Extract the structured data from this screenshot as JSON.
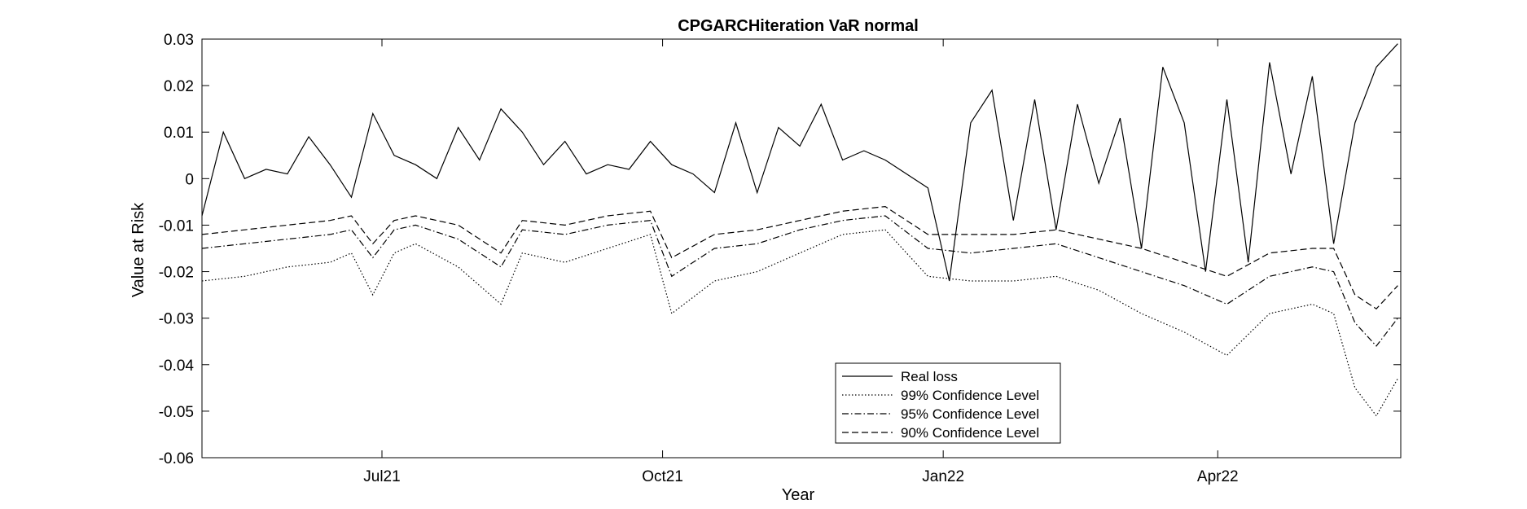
{
  "chart_data": {
    "type": "line",
    "title": "CPGARCHiteration VaR normal",
    "xlabel": "Year",
    "ylabel": "Value at Risk",
    "ylim": [
      -0.06,
      0.03
    ],
    "xlim": [
      "2021-05-03",
      "2022-05-31"
    ],
    "yticks": [
      -0.06,
      -0.05,
      -0.04,
      -0.03,
      -0.02,
      -0.01,
      0,
      0.01,
      0.02,
      0.03
    ],
    "ytick_labels": [
      "-0.06",
      "-0.05",
      "-0.04",
      "-0.03",
      "-0.02",
      "-0.01",
      "0",
      "0.01",
      "0.02",
      "0.03"
    ],
    "xticks": [
      "2021-07-01",
      "2021-10-01",
      "2022-01-01",
      "2022-04-01"
    ],
    "xtick_labels": [
      "Jul21",
      "Oct21",
      "Jan22",
      "Apr22"
    ],
    "grid": false,
    "legend_position": "bottom-center",
    "series": [
      {
        "name": "Real loss",
        "style": "solid",
        "color": "#000000",
        "x": [
          "2021-05-03",
          "2021-05-10",
          "2021-05-17",
          "2021-05-24",
          "2021-05-31",
          "2021-06-07",
          "2021-06-14",
          "2021-06-21",
          "2021-06-28",
          "2021-07-05",
          "2021-07-12",
          "2021-07-19",
          "2021-07-26",
          "2021-08-02",
          "2021-08-09",
          "2021-08-16",
          "2021-08-23",
          "2021-08-30",
          "2021-09-06",
          "2021-09-13",
          "2021-09-20",
          "2021-09-27",
          "2021-10-04",
          "2021-10-11",
          "2021-10-18",
          "2021-10-25",
          "2021-11-01",
          "2021-11-08",
          "2021-11-15",
          "2021-11-22",
          "2021-11-29",
          "2021-12-06",
          "2021-12-13",
          "2021-12-20",
          "2021-12-27",
          "2022-01-03",
          "2022-01-10",
          "2022-01-17",
          "2022-01-24",
          "2022-01-31",
          "2022-02-07",
          "2022-02-14",
          "2022-02-21",
          "2022-02-28",
          "2022-03-07",
          "2022-03-14",
          "2022-03-21",
          "2022-03-28",
          "2022-04-04",
          "2022-04-11",
          "2022-04-18",
          "2022-04-25",
          "2022-05-02",
          "2022-05-09",
          "2022-05-16",
          "2022-05-23",
          "2022-05-30"
        ],
        "values": [
          -0.008,
          0.01,
          0.0,
          0.002,
          0.001,
          0.009,
          0.003,
          -0.004,
          0.014,
          0.005,
          0.003,
          0.0,
          0.011,
          0.004,
          0.015,
          0.01,
          0.003,
          0.008,
          0.001,
          0.003,
          0.002,
          0.008,
          0.003,
          0.001,
          -0.003,
          0.012,
          -0.003,
          0.011,
          0.007,
          0.016,
          0.004,
          0.006,
          0.004,
          0.001,
          -0.002,
          -0.022,
          0.012,
          0.019,
          -0.009,
          0.017,
          -0.011,
          0.016,
          -0.001,
          0.013,
          -0.015,
          0.024,
          0.012,
          -0.02,
          0.017,
          -0.018,
          0.025,
          0.001,
          0.022,
          -0.014,
          0.012,
          0.024,
          0.029
        ]
      },
      {
        "name": "99% Confidence Level",
        "style": "dotted",
        "color": "#000000",
        "x": [
          "2021-05-03",
          "2021-05-17",
          "2021-05-31",
          "2021-06-14",
          "2021-06-21",
          "2021-06-28",
          "2021-07-05",
          "2021-07-12",
          "2021-07-26",
          "2021-08-09",
          "2021-08-16",
          "2021-08-30",
          "2021-09-13",
          "2021-09-27",
          "2021-10-04",
          "2021-10-18",
          "2021-11-01",
          "2021-11-15",
          "2021-11-29",
          "2021-12-13",
          "2021-12-27",
          "2022-01-10",
          "2022-01-24",
          "2022-02-07",
          "2022-02-21",
          "2022-03-07",
          "2022-03-21",
          "2022-04-04",
          "2022-04-18",
          "2022-05-02",
          "2022-05-09",
          "2022-05-16",
          "2022-05-23",
          "2022-05-30"
        ],
        "values": [
          -0.022,
          -0.021,
          -0.019,
          -0.018,
          -0.016,
          -0.025,
          -0.016,
          -0.014,
          -0.019,
          -0.027,
          -0.016,
          -0.018,
          -0.015,
          -0.012,
          -0.029,
          -0.022,
          -0.02,
          -0.016,
          -0.012,
          -0.011,
          -0.021,
          -0.022,
          -0.022,
          -0.021,
          -0.024,
          -0.029,
          -0.033,
          -0.038,
          -0.029,
          -0.027,
          -0.029,
          -0.045,
          -0.051,
          -0.043
        ]
      },
      {
        "name": "95% Confidence Level",
        "style": "dashdot",
        "color": "#000000",
        "x": [
          "2021-05-03",
          "2021-05-17",
          "2021-05-31",
          "2021-06-14",
          "2021-06-21",
          "2021-06-28",
          "2021-07-05",
          "2021-07-12",
          "2021-07-26",
          "2021-08-09",
          "2021-08-16",
          "2021-08-30",
          "2021-09-13",
          "2021-09-27",
          "2021-10-04",
          "2021-10-18",
          "2021-11-01",
          "2021-11-15",
          "2021-11-29",
          "2021-12-13",
          "2021-12-27",
          "2022-01-10",
          "2022-01-24",
          "2022-02-07",
          "2022-02-21",
          "2022-03-07",
          "2022-03-21",
          "2022-04-04",
          "2022-04-18",
          "2022-05-02",
          "2022-05-09",
          "2022-05-16",
          "2022-05-23",
          "2022-05-30"
        ],
        "values": [
          -0.015,
          -0.014,
          -0.013,
          -0.012,
          -0.011,
          -0.017,
          -0.011,
          -0.01,
          -0.013,
          -0.019,
          -0.011,
          -0.012,
          -0.01,
          -0.009,
          -0.021,
          -0.015,
          -0.014,
          -0.011,
          -0.009,
          -0.008,
          -0.015,
          -0.016,
          -0.015,
          -0.014,
          -0.017,
          -0.02,
          -0.023,
          -0.027,
          -0.021,
          -0.019,
          -0.02,
          -0.031,
          -0.036,
          -0.03
        ]
      },
      {
        "name": "90% Confidence Level",
        "style": "dashed",
        "color": "#000000",
        "x": [
          "2021-05-03",
          "2021-05-17",
          "2021-05-31",
          "2021-06-14",
          "2021-06-21",
          "2021-06-28",
          "2021-07-05",
          "2021-07-12",
          "2021-07-26",
          "2021-08-09",
          "2021-08-16",
          "2021-08-30",
          "2021-09-13",
          "2021-09-27",
          "2021-10-04",
          "2021-10-18",
          "2021-11-01",
          "2021-11-15",
          "2021-11-29",
          "2021-12-13",
          "2021-12-27",
          "2022-01-10",
          "2022-01-24",
          "2022-02-07",
          "2022-02-21",
          "2022-03-07",
          "2022-03-21",
          "2022-04-04",
          "2022-04-18",
          "2022-05-02",
          "2022-05-09",
          "2022-05-16",
          "2022-05-23",
          "2022-05-30"
        ],
        "values": [
          -0.012,
          -0.011,
          -0.01,
          -0.009,
          -0.008,
          -0.014,
          -0.009,
          -0.008,
          -0.01,
          -0.016,
          -0.009,
          -0.01,
          -0.008,
          -0.007,
          -0.017,
          -0.012,
          -0.011,
          -0.009,
          -0.007,
          -0.006,
          -0.012,
          -0.012,
          -0.012,
          -0.011,
          -0.013,
          -0.015,
          -0.018,
          -0.021,
          -0.016,
          -0.015,
          -0.015,
          -0.025,
          -0.028,
          -0.023
        ]
      }
    ]
  }
}
